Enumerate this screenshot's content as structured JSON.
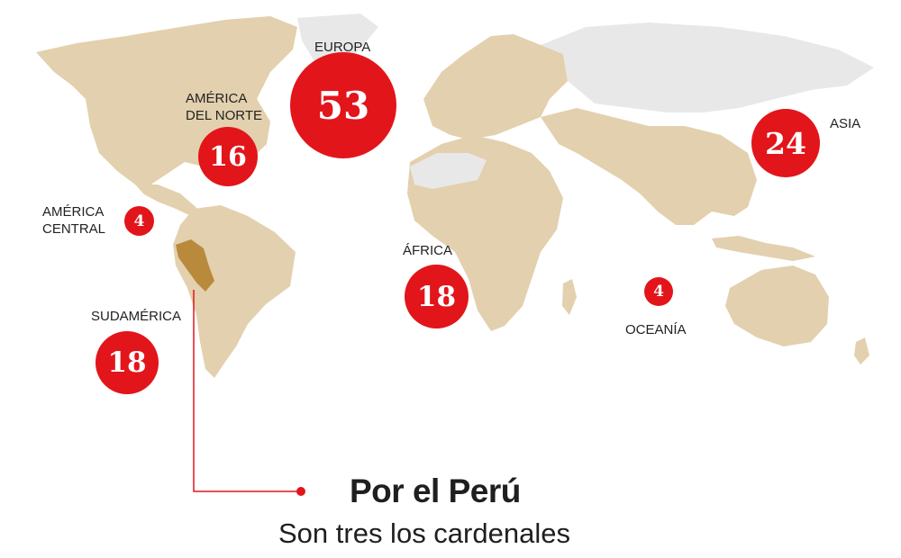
{
  "colors": {
    "land_highlight": "#e3d0ae",
    "land_other": "#e8e8e8",
    "peru": "#b98a3c",
    "bubble": "#e2151b",
    "leader_line": "#e2151b",
    "text": "#1f1f1f"
  },
  "regions": [
    {
      "id": "europa",
      "label": "EUROPA",
      "count": "53"
    },
    {
      "id": "asia",
      "label": "ASIA",
      "count": "24"
    },
    {
      "id": "america-norte",
      "label": "AMÉRICA\nDEL NORTE",
      "label_line1": "AMÉRICA",
      "label_line2": "DEL NORTE",
      "count": "16"
    },
    {
      "id": "america-central",
      "label_line1": "AMÉRICA",
      "label_line2": "CENTRAL",
      "count": "4"
    },
    {
      "id": "sudamerica",
      "label": "SUDAMÉRICA",
      "count": "18"
    },
    {
      "id": "africa",
      "label": "ÁFRICA",
      "count": "18"
    },
    {
      "id": "oceania",
      "label": "OCEANÍA",
      "count": "4"
    }
  ],
  "highlighted_country": "Perú",
  "title": "Por el Perú",
  "subtitle": "Son tres los cardenales"
}
